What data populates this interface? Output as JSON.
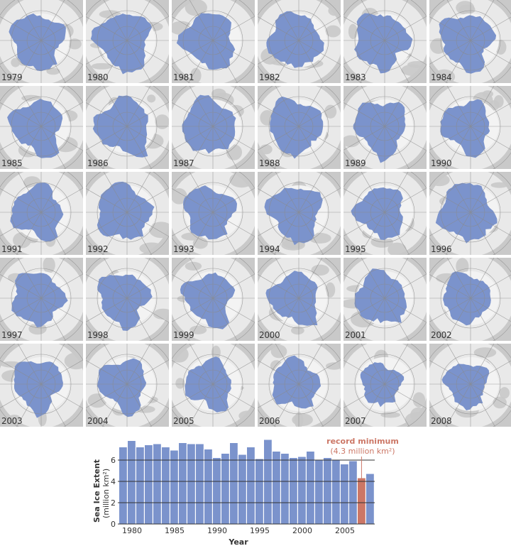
{
  "map_years": [
    "1979",
    "1980",
    "1981",
    "1982",
    "1983",
    "1984",
    "1985",
    "1986",
    "1987",
    "1988",
    "1989",
    "1990",
    "1991",
    "1992",
    "1993",
    "1994",
    "1995",
    "1996",
    "1997",
    "1998",
    "1999",
    "2000",
    "2001",
    "2002",
    "2003",
    "2004",
    "2005",
    "2006",
    "2007",
    "2008"
  ],
  "colors": {
    "ice": "#7b93cc",
    "land": "#c9c9c9",
    "ocean": "#e9e9e9",
    "grid": "#8a8a8a",
    "highlight": "#cc7766",
    "axis": "#333333"
  },
  "chart_data": {
    "type": "bar",
    "x": [
      1979,
      1980,
      1981,
      1982,
      1983,
      1984,
      1985,
      1986,
      1987,
      1988,
      1989,
      1990,
      1991,
      1992,
      1993,
      1994,
      1995,
      1996,
      1997,
      1998,
      1999,
      2000,
      2001,
      2002,
      2003,
      2004,
      2005,
      2006,
      2007,
      2008
    ],
    "values": [
      7.2,
      7.8,
      7.2,
      7.4,
      7.5,
      7.2,
      6.9,
      7.6,
      7.5,
      7.5,
      7.0,
      6.2,
      6.6,
      7.6,
      6.5,
      7.2,
      6.1,
      7.9,
      6.8,
      6.6,
      6.2,
      6.3,
      6.8,
      6.0,
      6.2,
      6.0,
      5.6,
      5.9,
      4.3,
      4.7
    ],
    "highlight_year": 2007,
    "xlabel": "Year",
    "ylabel": "Sea Ice Extent",
    "ylabel_units": "(million km²)",
    "ylim": [
      0,
      8
    ],
    "yticks": [
      0,
      2,
      4,
      6
    ],
    "xticks": [
      1980,
      1985,
      1990,
      1995,
      2000,
      2005
    ],
    "grid": true,
    "annotation": {
      "title": "record minimum",
      "detail": "(4.3 million km²)"
    }
  }
}
